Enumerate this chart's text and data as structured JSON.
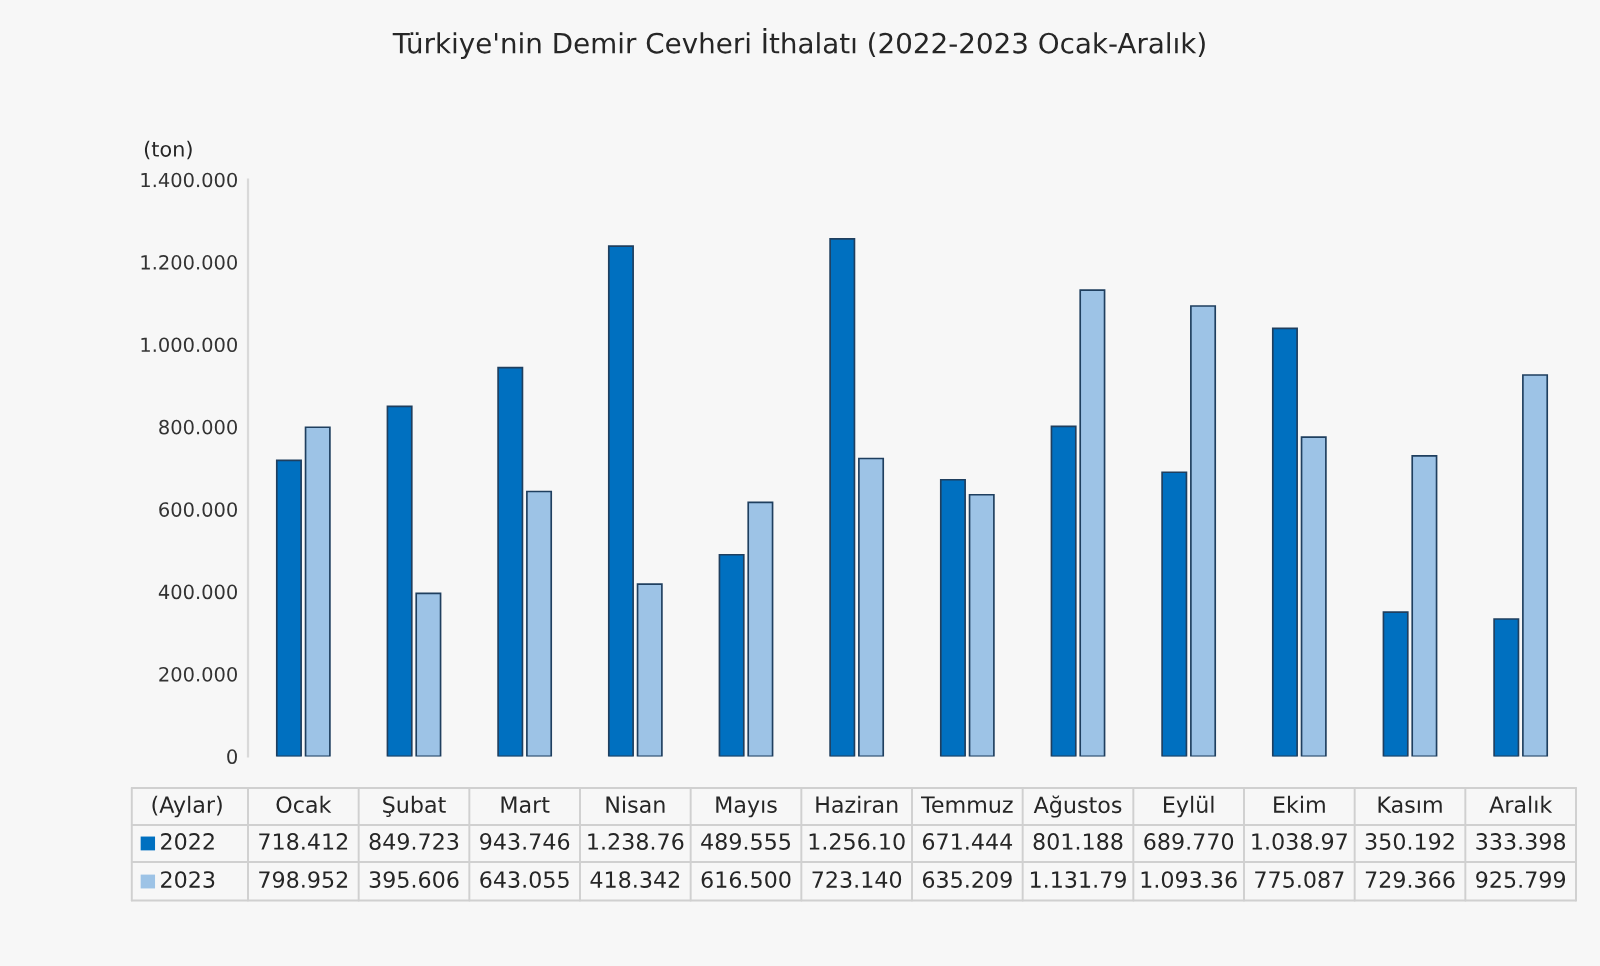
{
  "chart_data": {
    "type": "bar",
    "title": "Türkiye'nin Demir Cevheri İthalatı (2022-2023 Ocak-Aralık)",
    "ylabel": "(ton)",
    "xlabel": "(Aylar)",
    "categories": [
      "Ocak",
      "Şubat",
      "Mart",
      "Nisan",
      "Mayıs",
      "Haziran",
      "Temmuz",
      "Ağustos",
      "Eylül",
      "Ekim",
      "Kasım",
      "Aralık"
    ],
    "series": [
      {
        "name": "2022",
        "color": "#0070c0",
        "values": [
          718412,
          849723,
          943746,
          1238760,
          489555,
          1256100,
          671444,
          801188,
          689770,
          1038970,
          350192,
          333398
        ],
        "value_labels": [
          "718.412",
          "849.723",
          "943.746",
          "1.238.76",
          "489.555",
          "1.256.10",
          "671.444",
          "801.188",
          "689.770",
          "1.038.97",
          "350.192",
          "333.398"
        ]
      },
      {
        "name": "2023",
        "color": "#9dc3e6",
        "values": [
          798952,
          395606,
          643055,
          418342,
          616500,
          723140,
          635209,
          1131790,
          1093360,
          775087,
          729366,
          925799
        ],
        "value_labels": [
          "798.952",
          "395.606",
          "643.055",
          "418.342",
          "616.500",
          "723.140",
          "635.209",
          "1.131.79",
          "1.093.36",
          "775.087",
          "729.366",
          "925.799"
        ]
      }
    ],
    "ylim": [
      0,
      1400000
    ],
    "yticks": [
      {
        "value": 0,
        "label": "0"
      },
      {
        "value": 200000,
        "label": "200.000"
      },
      {
        "value": 400000,
        "label": "400.000"
      },
      {
        "value": 600000,
        "label": "600.000"
      },
      {
        "value": 800000,
        "label": "800.000"
      },
      {
        "value": 1000000,
        "label": "1.000.000"
      },
      {
        "value": 1200000,
        "label": "1.200.000"
      },
      {
        "value": 1400000,
        "label": "1.400.000"
      }
    ],
    "grid": false,
    "legend": "bottom"
  }
}
